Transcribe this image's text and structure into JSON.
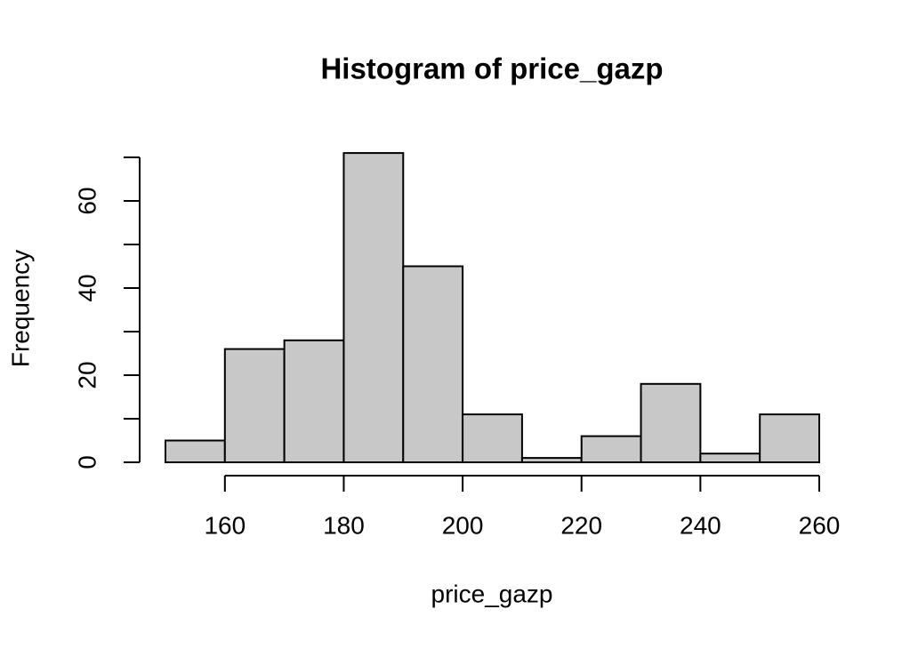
{
  "chart_data": {
    "type": "histogram",
    "title": "Histogram of price_gazp",
    "xlabel": "price_gazp",
    "ylabel": "Frequency",
    "bins": [
      150,
      160,
      170,
      180,
      190,
      200,
      210,
      220,
      230,
      240,
      250,
      260
    ],
    "values": [
      5,
      26,
      28,
      71,
      45,
      11,
      1,
      6,
      18,
      2,
      11
    ],
    "color": "#c8c8c8",
    "xlim": [
      150,
      260
    ],
    "xticks": [
      160,
      180,
      200,
      220,
      240,
      260
    ],
    "ylim": [
      0,
      70
    ],
    "yticks": [
      0,
      20,
      40,
      60
    ],
    "yminor_ticks": [
      10,
      30,
      50,
      70
    ]
  }
}
